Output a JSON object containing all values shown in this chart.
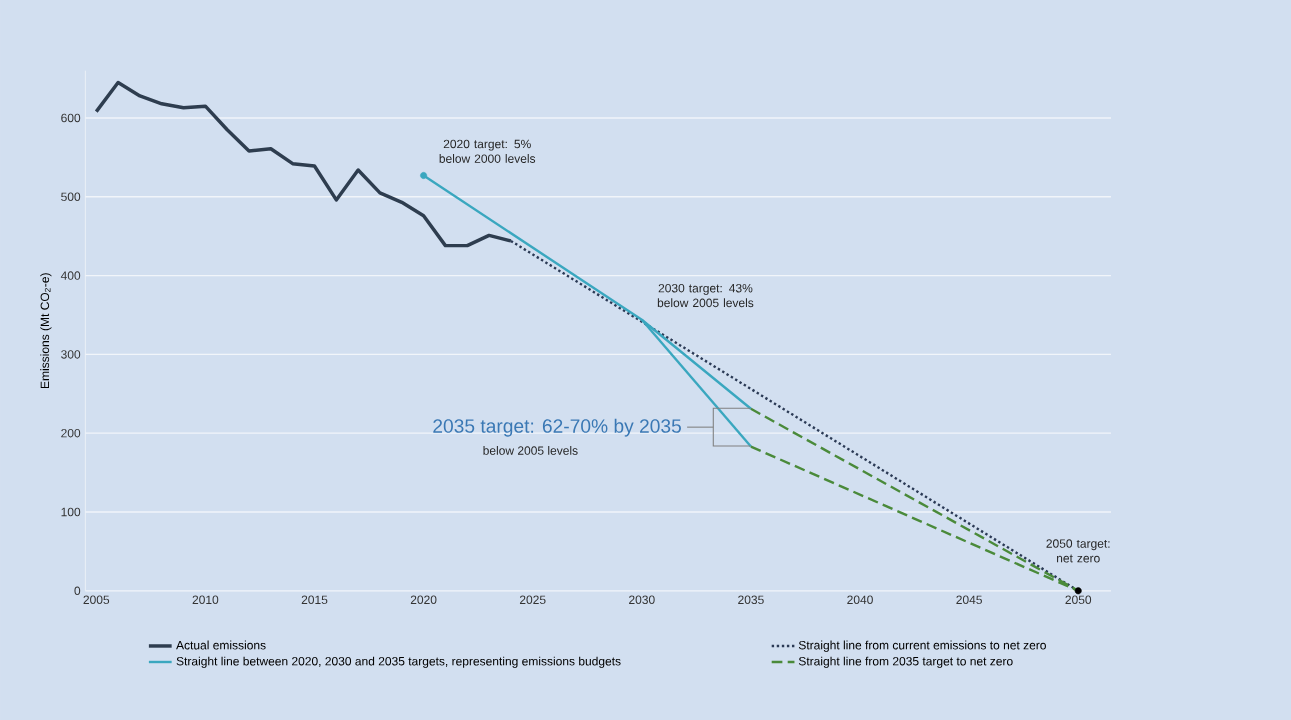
{
  "chart_data": {
    "type": "line",
    "ylabel": "Emissions (Mt CO$_{2}$-e)",
    "xlim": [
      2004.5,
      2051.5
    ],
    "ylim": [
      0,
      660
    ],
    "xticks": [
      2005,
      2010,
      2015,
      2020,
      2025,
      2030,
      2035,
      2040,
      2045,
      2050
    ],
    "yticks": [
      0,
      100,
      200,
      300,
      400,
      500,
      600
    ],
    "grid": "y",
    "legend": "bottom",
    "series": [
      {
        "name": "Actual emissions",
        "color": "#2e3d4f",
        "line_style": "solid",
        "x": [
          2005,
          2006,
          2007,
          2008,
          2009,
          2010,
          2011,
          2012,
          2013,
          2014,
          2015,
          2016,
          2017,
          2018,
          2019,
          2020,
          2021,
          2022,
          2023,
          2024
        ],
        "values": [
          608,
          645,
          628,
          618,
          613,
          615,
          585,
          558,
          561,
          542,
          539,
          496,
          534,
          505,
          493,
          476,
          438,
          438,
          451,
          444
        ]
      },
      {
        "name": "Straight line from current emissions to net zero",
        "color": "#2b3a55",
        "line_style": "dotted",
        "x": [
          2024,
          2050
        ],
        "values": [
          444,
          0
        ]
      },
      {
        "name": "Straight line between 2020, 2030 and 2035 targets, representing emissions budgets",
        "color": "#3aa7bf",
        "line_style": "solid",
        "x": [
          2020,
          2030,
          2035
        ],
        "values": [
          527,
          344,
          231
        ]
      },
      {
        "name": "Straight line from 2035 target to net zero",
        "color": "#4a8a3a",
        "line_style": "dashed",
        "x": [
          2035,
          2050
        ],
        "values": [
          231,
          0
        ]
      },
      {
        "color": "#3aa7bf",
        "line_style": "solid",
        "x": [
          2030,
          2035
        ],
        "values": [
          344,
          183
        ]
      },
      {
        "color": "#4a8a3a",
        "line_style": "dashed",
        "x": [
          2035,
          2050
        ],
        "values": [
          183,
          0
        ]
      },
      {
        "type": "scatter",
        "color": "#3aa7bf",
        "x": [
          2020
        ],
        "values": [
          527
        ]
      },
      {
        "type": "scatter",
        "color": "#000000",
        "x": [
          2050
        ],
        "values": [
          0
        ]
      }
    ],
    "annotations": [
      {
        "text": "2020 target: 5% below 2000 levels",
        "x": 2020,
        "y": 527
      },
      {
        "text": "2030 target: 43% below 2005 levels",
        "x": 2030,
        "y": 344
      },
      "2035 target: 62-70% by 2035",
      "below 2005 levels",
      {
        "text": "2050 target: net zero",
        "x": 2050,
        "y": 0
      }
    ]
  }
}
